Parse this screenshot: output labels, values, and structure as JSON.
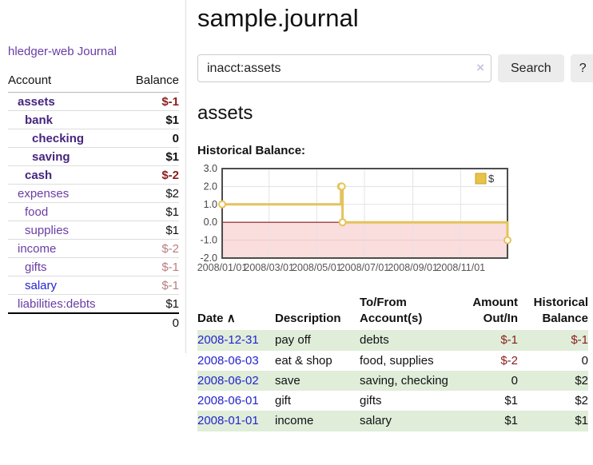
{
  "app": {
    "title": "hledger-web"
  },
  "sidebar": {
    "nav_journal": "Journal",
    "headers": {
      "account": "Account",
      "balance": "Balance"
    },
    "accounts": [
      {
        "name": "assets",
        "depth": 1,
        "bold": true,
        "balance": "$-1",
        "balance_style": "neg-bold"
      },
      {
        "name": "bank",
        "depth": 2,
        "bold": true,
        "balance": "$1",
        "balance_style": "bold"
      },
      {
        "name": "checking",
        "depth": 3,
        "bold": true,
        "balance": "0",
        "balance_style": "bold"
      },
      {
        "name": "saving",
        "depth": 3,
        "bold": true,
        "balance": "$1",
        "balance_style": "bold"
      },
      {
        "name": "cash",
        "depth": 2,
        "bold": true,
        "balance": "$-2",
        "balance_style": "neg-bold"
      },
      {
        "name": "expenses",
        "depth": 1,
        "bold": false,
        "balance": "$2",
        "balance_style": "plain"
      },
      {
        "name": "food",
        "depth": 2,
        "bold": false,
        "balance": "$1",
        "balance_style": "plain"
      },
      {
        "name": "supplies",
        "depth": 2,
        "bold": false,
        "balance": "$1",
        "balance_style": "plain"
      },
      {
        "name": "income",
        "depth": 1,
        "bold": false,
        "balance": "$-2",
        "balance_style": "neg-faded"
      },
      {
        "name": "gifts",
        "depth": 2,
        "bold": false,
        "balance": "$-1",
        "balance_style": "neg-faded"
      },
      {
        "name": "salary",
        "depth": 2,
        "bold": false,
        "color": "blue",
        "balance": "$-1",
        "balance_style": "neg-faded"
      },
      {
        "name": "liabilities:debts",
        "depth": 1,
        "bold": false,
        "balance": "$1",
        "balance_style": "plain"
      }
    ],
    "total": "0"
  },
  "header": {
    "title": "sample.journal"
  },
  "search": {
    "value": "inacct:assets",
    "clear_icon": "×",
    "button_label": "Search",
    "help_label": "?"
  },
  "account_page": {
    "heading": "assets",
    "chart_title": "Historical Balance:"
  },
  "chart_data": {
    "type": "line",
    "step": true,
    "title": "Historical Balance:",
    "legend": "$",
    "legend_position": "top-right",
    "series": [
      {
        "name": "$",
        "points": [
          {
            "date": "2008-01-01",
            "value": 1
          },
          {
            "date": "2008-06-01",
            "value": 2
          },
          {
            "date": "2008-06-02",
            "value": 2
          },
          {
            "date": "2008-06-03",
            "value": 0
          },
          {
            "date": "2008-12-31",
            "value": -1
          }
        ]
      }
    ],
    "x_range": [
      "2008-01-01",
      "2008-12-31"
    ],
    "ylim": [
      -2,
      3
    ],
    "y_ticks": [
      3,
      2,
      1,
      0,
      -1,
      -2
    ],
    "y_tick_labels": [
      "3.0",
      "2.0",
      "1.0",
      "0.0",
      "-1.0",
      "-2.0"
    ],
    "x_tick_labels": [
      "2008/01/01",
      "2008/03/01",
      "2008/05/01",
      "2008/07/01",
      "2008/09/01",
      "2008/11/01"
    ],
    "grid": true,
    "colors": {
      "line": "#e5c25c",
      "marker_fill": "#fffdf2",
      "negative_region": "#fadddd",
      "negative_grid": "#f1c6c6",
      "zero_line": "#8b1a1a",
      "border": "#4d4d4d",
      "grid": "#e3e3e3",
      "legend_fill": "#e9c348",
      "legend_border": "#c8a028",
      "legend_text": "#333333"
    }
  },
  "register": {
    "columns": [
      {
        "lines": [
          "Date"
        ],
        "sort_icon": "∧",
        "align": "left"
      },
      {
        "lines": [
          "Description"
        ],
        "align": "left"
      },
      {
        "lines": [
          "To/From",
          "Account(s)"
        ],
        "align": "left"
      },
      {
        "lines": [
          "Amount",
          "Out/In"
        ],
        "align": "right"
      },
      {
        "lines": [
          "Historical",
          "Balance"
        ],
        "align": "right"
      }
    ],
    "rows": [
      {
        "date": "2008-12-31",
        "description": "pay off",
        "accounts": "debts",
        "amount": "$-1",
        "amount_negative": true,
        "balance": "$-1",
        "balance_negative": true
      },
      {
        "date": "2008-06-03",
        "description": "eat & shop",
        "accounts": "food, supplies",
        "amount": "$-2",
        "amount_negative": true,
        "balance": "0",
        "balance_negative": false
      },
      {
        "date": "2008-06-02",
        "description": "save",
        "accounts": "saving, checking",
        "amount": "0",
        "amount_negative": false,
        "balance": "$2",
        "balance_negative": false
      },
      {
        "date": "2008-06-01",
        "description": "gift",
        "accounts": "gifts",
        "amount": "$1",
        "amount_negative": false,
        "balance": "$2",
        "balance_negative": false
      },
      {
        "date": "2008-01-01",
        "description": "income",
        "accounts": "salary",
        "amount": "$1",
        "amount_negative": false,
        "balance": "$1",
        "balance_negative": false
      }
    ]
  }
}
